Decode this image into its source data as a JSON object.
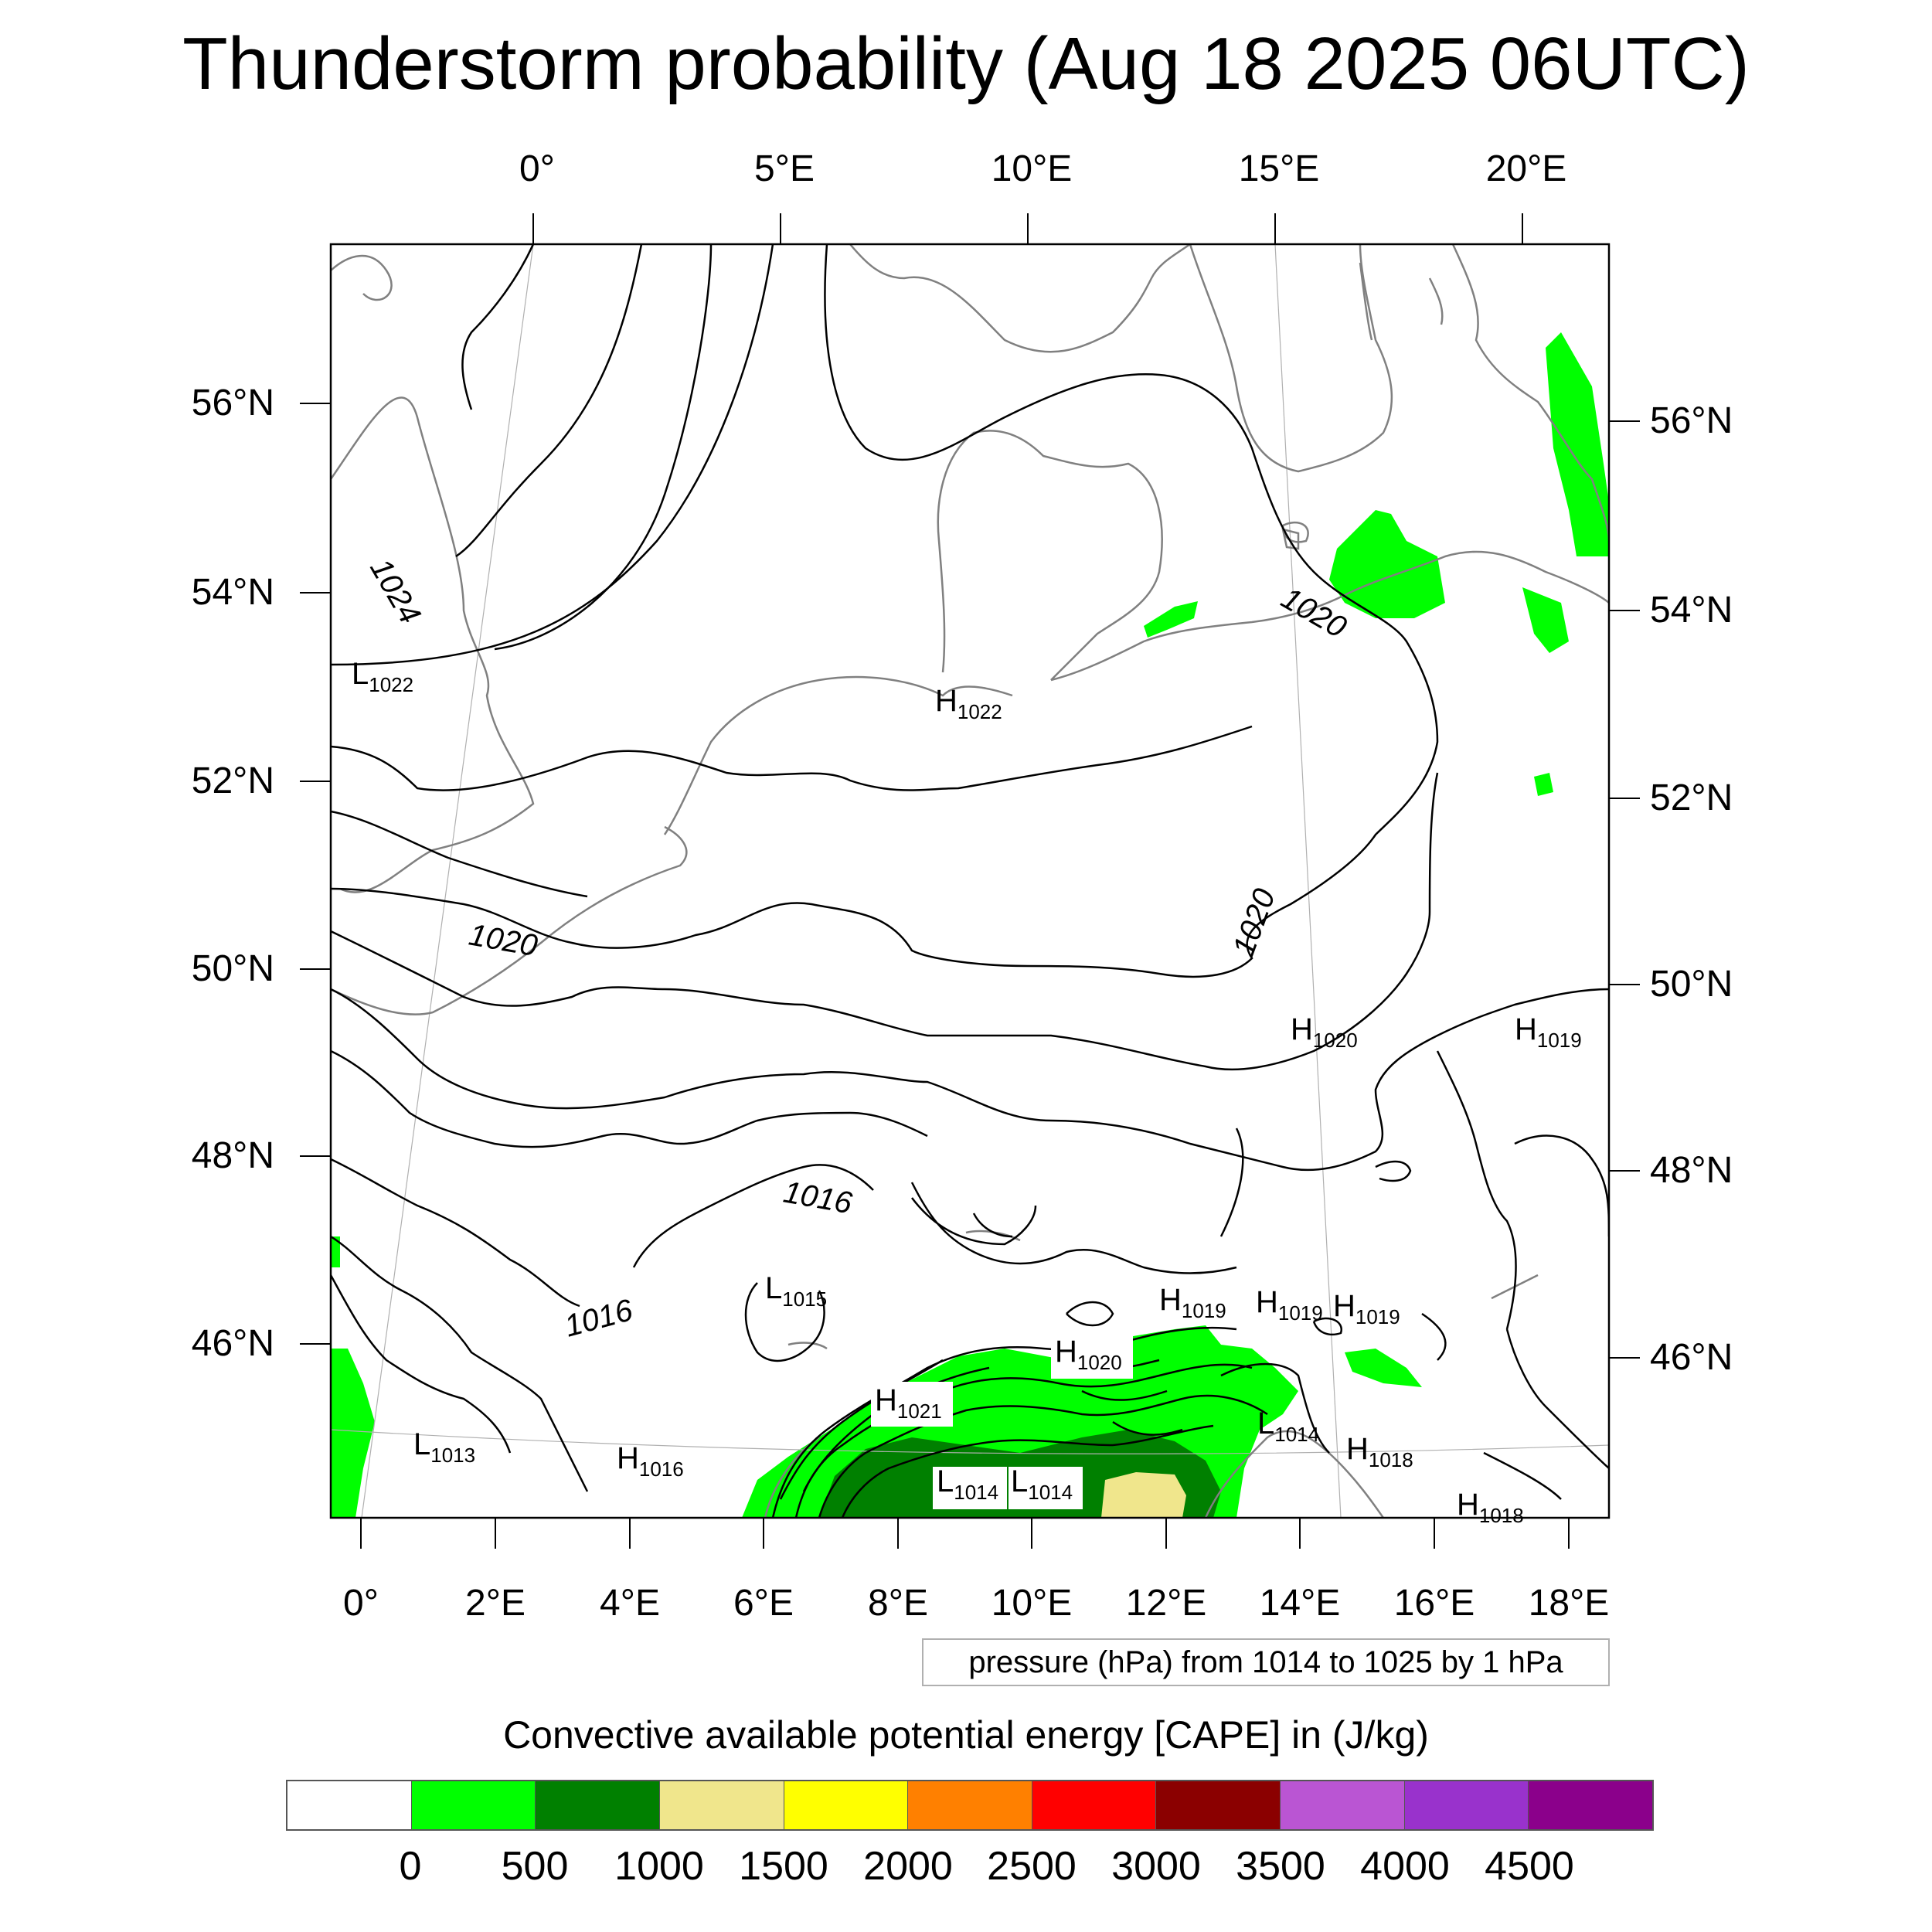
{
  "title": "Thunderstorm probability (Aug 18 2025 06UTC)",
  "top_axis_labels": [
    "0°",
    "5°E",
    "10°E",
    "15°E",
    "20°E"
  ],
  "bottom_axis_labels": [
    "0°",
    "2°E",
    "4°E",
    "6°E",
    "8°E",
    "10°E",
    "12°E",
    "14°E",
    "16°E",
    "18°E"
  ],
  "left_axis_labels": [
    "56°N",
    "54°N",
    "52°N",
    "50°N",
    "48°N",
    "46°N"
  ],
  "right_axis_labels": [
    "56°N",
    "54°N",
    "52°N",
    "50°N",
    "48°N",
    "46°N"
  ],
  "contour_labels": [
    "1024",
    "1020",
    "1020",
    "1020",
    "1016",
    "1016"
  ],
  "pressure_centers": [
    {
      "type": "L",
      "value": "1022"
    },
    {
      "type": "H",
      "value": "1022"
    },
    {
      "type": "H",
      "value": "1020"
    },
    {
      "type": "H",
      "value": "1019"
    },
    {
      "type": "L",
      "value": "1015"
    },
    {
      "type": "H",
      "value": "1019"
    },
    {
      "type": "H",
      "value": "1019"
    },
    {
      "type": "H",
      "value": "1019"
    },
    {
      "type": "H",
      "value": "1020"
    },
    {
      "type": "H",
      "value": "1021"
    },
    {
      "type": "L",
      "value": "1014"
    },
    {
      "type": "H",
      "value": "1018"
    },
    {
      "type": "L",
      "value": "1013"
    },
    {
      "type": "H",
      "value": "1016"
    },
    {
      "type": "L",
      "value": "1014"
    },
    {
      "type": "L",
      "value": "1014"
    },
    {
      "type": "H",
      "value": "1018"
    }
  ],
  "pressure_note": "pressure (hPa) from 1014 to 1025 by 1 hPa",
  "legend": {
    "title": "Convective available potential energy [CAPE] in (J/kg)",
    "colors": [
      "#ffffff",
      "#00ff00",
      "#008000",
      "#f0e68c",
      "#ffff00",
      "#ff8000",
      "#ff0000",
      "#8b0000",
      "#ba55d3",
      "#9932cc",
      "#8b008b"
    ],
    "labels": [
      "0",
      "500",
      "1000",
      "1500",
      "2000",
      "2500",
      "3000",
      "3500",
      "4000",
      "4500"
    ]
  }
}
